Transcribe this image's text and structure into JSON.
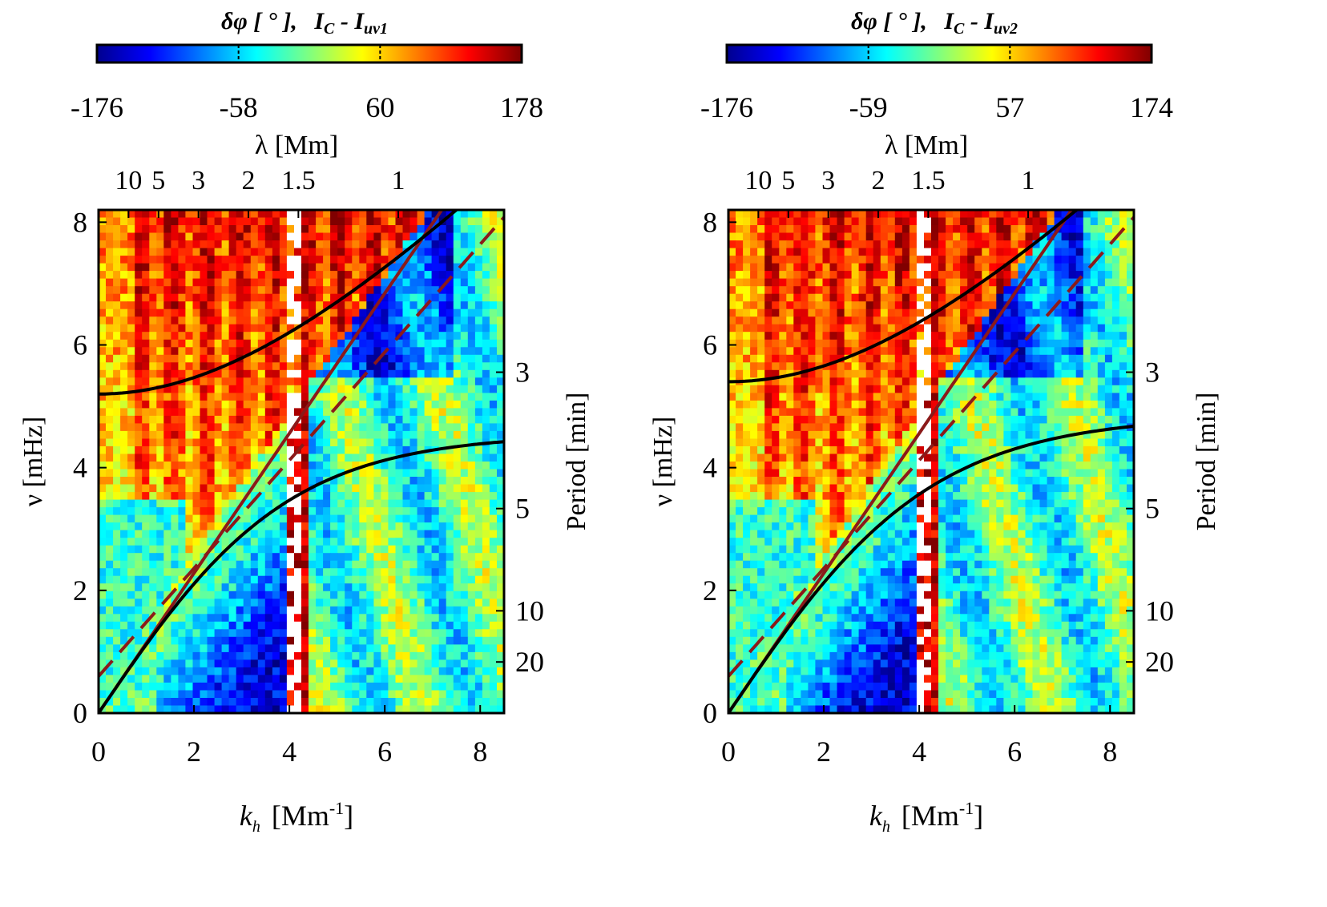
{
  "charts": [
    {
      "id": "left",
      "chart_data": {
        "type": "heatmap",
        "colorbar": {
          "label_main": "δφ [ ° ],",
          "label_signal": "I",
          "label_signal_sub_c": "C",
          "label_dash": " - I",
          "label_signal_sub_uv": "uv1",
          "ticks": [
            "-176",
            "-58",
            "60",
            "178"
          ],
          "range": [
            -176,
            178
          ]
        },
        "xlabel": "k",
        "xlabel_sub": "h",
        "xlabel_unit": "[Mm",
        "xlabel_sup": "-1",
        "xlabel_close": "]",
        "ylabel": "ν [mHz]",
        "top_label": "λ [Mm]",
        "right_label": "Period [min]",
        "xlim": [
          0,
          8.5
        ],
        "ylim": [
          0,
          8.2
        ],
        "x_ticks": [
          0,
          2,
          4,
          6,
          8
        ],
        "y_ticks": [
          0,
          2,
          4,
          6,
          8
        ],
        "top_ticks": [
          {
            "label": "10",
            "lambda": 10
          },
          {
            "label": "5",
            "lambda": 5
          },
          {
            "label": "3",
            "lambda": 3
          },
          {
            "label": "2",
            "lambda": 2
          },
          {
            "label": "1.5",
            "lambda": 1.5
          },
          {
            "label": "1",
            "lambda": 1
          }
        ],
        "right_ticks": [
          {
            "label": "3",
            "period_min": 3
          },
          {
            "label": "5",
            "period_min": 5
          },
          {
            "label": "10",
            "period_min": 10
          },
          {
            "label": "20",
            "period_min": 20
          }
        ],
        "curves": {
          "upper_black": {
            "nu0": 5.2,
            "nu_inf_slope": 1.14
          },
          "lower_black": {
            "nu_max": 4.55
          },
          "solid_red_slope": 1.14,
          "dashed_red_slope": 0.88
        }
      }
    },
    {
      "id": "right",
      "chart_data": {
        "type": "heatmap",
        "colorbar": {
          "label_main": "δφ [ ° ],",
          "label_signal": "I",
          "label_signal_sub_c": "C",
          "label_dash": " - I",
          "label_signal_sub_uv": "uv2",
          "ticks": [
            "-176",
            "-59",
            "57",
            "174"
          ],
          "range": [
            -176,
            174
          ]
        },
        "xlabel": "k",
        "xlabel_sub": "h",
        "xlabel_unit": "[Mm",
        "xlabel_sup": "-1",
        "xlabel_close": "]",
        "ylabel": "ν [mHz]",
        "top_label": "λ [Mm]",
        "right_label": "Period [min]",
        "xlim": [
          0,
          8.5
        ],
        "ylim": [
          0,
          8.2
        ],
        "x_ticks": [
          0,
          2,
          4,
          6,
          8
        ],
        "y_ticks": [
          0,
          2,
          4,
          6,
          8
        ],
        "top_ticks": [
          {
            "label": "10",
            "lambda": 10
          },
          {
            "label": "5",
            "lambda": 5
          },
          {
            "label": "3",
            "lambda": 3
          },
          {
            "label": "2",
            "lambda": 2
          },
          {
            "label": "1.5",
            "lambda": 1.5
          },
          {
            "label": "1",
            "lambda": 1
          }
        ],
        "right_ticks": [
          {
            "label": "3",
            "period_min": 3
          },
          {
            "label": "5",
            "period_min": 5
          },
          {
            "label": "10",
            "period_min": 10
          },
          {
            "label": "20",
            "period_min": 20
          }
        ],
        "curves": {
          "upper_black": {
            "nu0": 5.4,
            "nu_inf_slope": 1.14
          },
          "lower_black": {
            "nu_max": 4.85
          },
          "solid_red_slope": 1.14,
          "dashed_red_slope": 0.88
        }
      }
    }
  ]
}
